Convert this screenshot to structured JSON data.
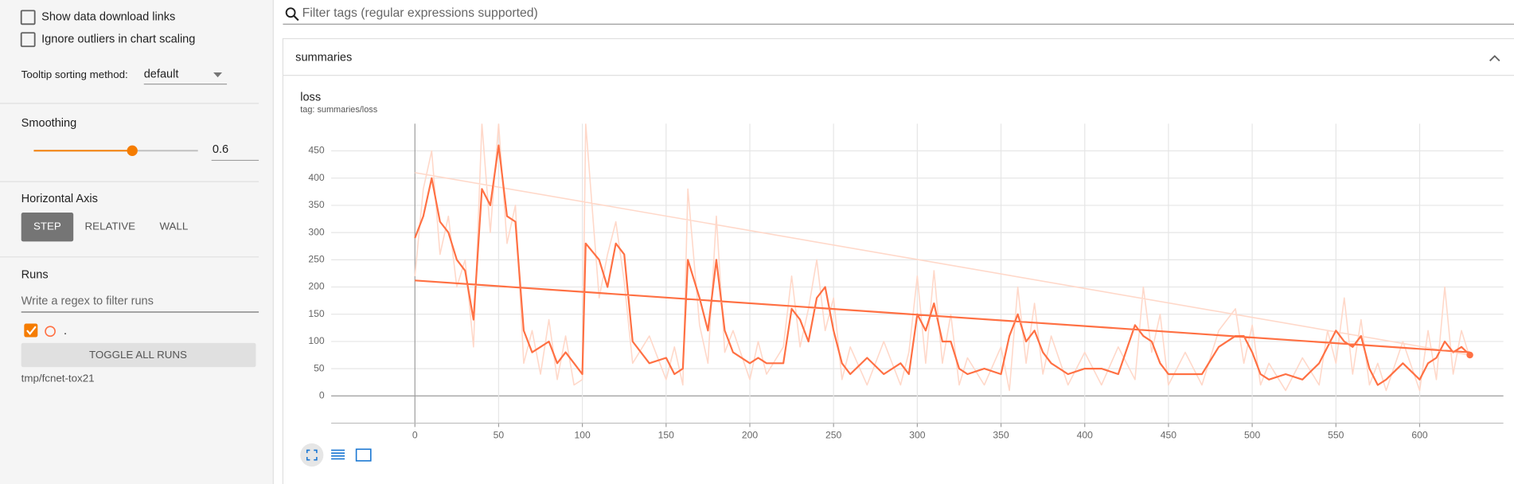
{
  "sidebar": {
    "show_download": "Show data download links",
    "ignore_outliers": "Ignore outliers in chart scaling",
    "tooltip_label": "Tooltip sorting method:",
    "tooltip_value": "default",
    "smoothing_label": "Smoothing",
    "smoothing_value": 0.6,
    "axis_label": "Horizontal Axis",
    "axis_options": [
      "STEP",
      "RELATIVE",
      "WALL"
    ],
    "runs_label": "Runs",
    "runs_filter_placeholder": "Write a regex to filter runs",
    "run_name": ".",
    "toggle_all": "TOGGLE ALL RUNS",
    "run_path": "tmp/fcnet-tox21"
  },
  "search_placeholder": "Filter tags (regular expressions supported)",
  "section": "summaries",
  "chart_data": {
    "type": "line",
    "title": "loss",
    "subtitle": "tag: summaries/loss",
    "x": [
      0,
      630,
      null,
      0,
      5,
      10,
      15,
      20,
      25,
      30,
      35,
      40,
      45,
      50,
      55,
      60,
      65,
      70,
      75,
      80,
      85,
      90,
      95,
      100,
      102,
      110,
      115,
      120,
      125,
      130,
      140,
      150,
      155,
      160,
      163,
      170,
      175,
      180,
      185,
      190,
      200,
      205,
      210,
      220,
      225,
      230,
      235,
      240,
      245,
      250,
      255,
      260,
      270,
      280,
      290,
      295,
      300,
      305,
      310,
      315,
      320,
      325,
      330,
      340,
      350,
      355,
      360,
      365,
      370,
      375,
      380,
      390,
      400,
      410,
      420,
      430,
      435,
      440,
      445,
      450,
      460,
      470,
      480,
      490,
      495,
      500,
      505,
      510,
      520,
      530,
      540,
      545,
      550,
      555,
      560,
      565,
      570,
      575,
      580,
      590,
      600,
      605,
      610,
      615,
      620,
      625,
      630
    ],
    "series": [
      {
        "color": "#ffd8c9",
        "values": [
          410,
          75,
          null,
          220,
          380,
          450,
          260,
          330,
          200,
          250,
          90,
          500,
          300,
          500,
          280,
          350,
          60,
          120,
          40,
          140,
          30,
          110,
          20,
          30,
          500,
          180,
          260,
          320,
          210,
          60,
          110,
          30,
          90,
          20,
          380,
          130,
          60,
          330,
          80,
          120,
          30,
          100,
          40,
          90,
          220,
          90,
          160,
          250,
          120,
          180,
          30,
          90,
          20,
          100,
          20,
          80,
          220,
          60,
          230,
          60,
          150,
          20,
          70,
          20,
          90,
          10,
          200,
          60,
          170,
          40,
          110,
          20,
          80,
          20,
          90,
          30,
          200,
          80,
          150,
          20,
          80,
          20,
          120,
          160,
          60,
          130,
          20,
          60,
          10,
          70,
          20,
          120,
          60,
          180,
          40,
          140,
          20,
          60,
          10,
          100,
          10,
          120,
          30,
          200,
          40,
          120,
          70
        ]
      },
      {
        "color": "#ff7043",
        "values": [
          212,
          80,
          null,
          290,
          330,
          400,
          320,
          300,
          250,
          230,
          140,
          380,
          350,
          460,
          330,
          320,
          120,
          80,
          90,
          100,
          60,
          80,
          60,
          40,
          280,
          250,
          200,
          280,
          260,
          100,
          60,
          70,
          40,
          50,
          250,
          180,
          120,
          250,
          120,
          80,
          60,
          70,
          60,
          60,
          160,
          140,
          100,
          180,
          200,
          120,
          60,
          40,
          70,
          40,
          60,
          40,
          150,
          120,
          170,
          100,
          100,
          50,
          40,
          50,
          40,
          110,
          150,
          100,
          120,
          80,
          60,
          40,
          50,
          50,
          40,
          130,
          110,
          100,
          60,
          40,
          40,
          40,
          90,
          110,
          110,
          80,
          40,
          30,
          40,
          30,
          60,
          90,
          120,
          100,
          90,
          110,
          50,
          20,
          30,
          60,
          30,
          60,
          70,
          100,
          80,
          90,
          75
        ]
      }
    ],
    "xlim": [
      -50,
      650
    ],
    "ylim": [
      -50,
      500
    ],
    "xticks": [
      0,
      50,
      100,
      150,
      200,
      250,
      300,
      350,
      400,
      450,
      500,
      550,
      600
    ],
    "yticks": [
      0,
      50,
      100,
      150,
      200,
      250,
      300,
      350,
      400,
      450
    ],
    "grid": true
  }
}
